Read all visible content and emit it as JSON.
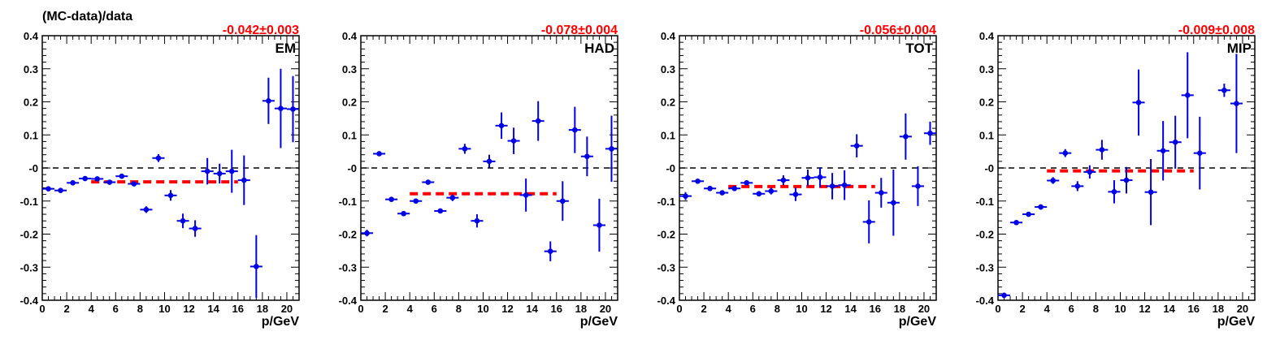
{
  "figure": {
    "ylabel": "(MC-data)/data",
    "xlabel": "p/GeV"
  },
  "colors": {
    "points": "#0000e6",
    "fit": "#ff0000",
    "zero_line": "#000000"
  },
  "chart_data": [
    {
      "type": "scatter",
      "label": "EM",
      "fit_text": "-0.042±0.003",
      "fit_value": -0.042,
      "fit_range": [
        4,
        16
      ],
      "xlim": [
        0,
        21
      ],
      "ylim": [
        -0.4,
        0.4
      ],
      "xticks": [
        0,
        2,
        4,
        6,
        8,
        10,
        12,
        14,
        16,
        18,
        20
      ],
      "yticks": [
        -0.4,
        -0.3,
        -0.2,
        -0.1,
        0,
        0.1,
        0.2,
        0.3,
        0.4
      ],
      "ytick_labels": [
        "-0.4",
        "-0.3",
        "-0.2",
        "-0.1",
        "-0",
        "0.1",
        "0.2",
        "0.3",
        "0.4"
      ],
      "x": [
        0.5,
        1.5,
        2.5,
        3.5,
        4.5,
        5.5,
        6.5,
        7.5,
        8.5,
        9.5,
        10.5,
        11.5,
        12.5,
        13.5,
        14.5,
        15.5,
        16.5,
        17.5,
        18.5,
        19.5,
        20.5
      ],
      "y": [
        -0.063,
        -0.068,
        -0.045,
        -0.032,
        -0.033,
        -0.043,
        -0.025,
        -0.048,
        -0.126,
        0.03,
        -0.083,
        -0.16,
        -0.183,
        -0.01,
        -0.017,
        -0.01,
        -0.037,
        -0.298,
        0.203,
        0.18,
        0.178
      ],
      "yerr": [
        0.005,
        0.005,
        0.005,
        0.005,
        0.005,
        0.005,
        0.006,
        0.007,
        0.01,
        0.012,
        0.016,
        0.022,
        0.025,
        0.04,
        0.03,
        0.065,
        0.075,
        0.095,
        0.07,
        0.12,
        0.1
      ]
    },
    {
      "type": "scatter",
      "label": "HAD",
      "fit_text": "-0.078±0.004",
      "fit_value": -0.078,
      "fit_range": [
        4,
        16
      ],
      "xlim": [
        0,
        21
      ],
      "ylim": [
        -0.4,
        0.4
      ],
      "xticks": [
        0,
        2,
        4,
        6,
        8,
        10,
        12,
        14,
        16,
        18,
        20
      ],
      "yticks": [
        -0.4,
        -0.3,
        -0.2,
        -0.1,
        0,
        0.1,
        0.2,
        0.3,
        0.4
      ],
      "ytick_labels": [
        "-0.4",
        "-0.3",
        "-0.2",
        "-0.1",
        "-0",
        "0.1",
        "0.2",
        "0.3",
        "0.4"
      ],
      "x": [
        0.5,
        1.5,
        2.5,
        3.5,
        4.5,
        5.5,
        6.5,
        7.5,
        8.5,
        9.5,
        10.5,
        11.5,
        12.5,
        13.5,
        14.5,
        15.5,
        16.5,
        17.5,
        18.5,
        19.5,
        20.5
      ],
      "y": [
        -0.197,
        0.043,
        -0.095,
        -0.138,
        -0.1,
        -0.043,
        -0.13,
        -0.09,
        0.058,
        -0.16,
        0.02,
        0.128,
        0.082,
        -0.082,
        0.142,
        -0.252,
        -0.1,
        0.115,
        0.035,
        -0.173,
        0.058
      ],
      "yerr": [
        0.01,
        0.005,
        0.005,
        0.005,
        0.005,
        0.005,
        0.005,
        0.01,
        0.015,
        0.02,
        0.02,
        0.04,
        0.04,
        0.05,
        0.06,
        0.03,
        0.06,
        0.07,
        0.06,
        0.08,
        0.1
      ]
    },
    {
      "type": "scatter",
      "label": "TOT",
      "fit_text": "-0.056±0.004",
      "fit_value": -0.056,
      "fit_range": [
        4,
        16
      ],
      "xlim": [
        0,
        21
      ],
      "ylim": [
        -0.4,
        0.4
      ],
      "xticks": [
        0,
        2,
        4,
        6,
        8,
        10,
        12,
        14,
        16,
        18,
        20
      ],
      "yticks": [
        -0.4,
        -0.3,
        -0.2,
        -0.1,
        0,
        0.1,
        0.2,
        0.3,
        0.4
      ],
      "ytick_labels": [
        "-0.4",
        "-0.3",
        "-0.2",
        "-0.1",
        "-0",
        "0.1",
        "0.2",
        "0.3",
        "0.4"
      ],
      "x": [
        0.5,
        1.5,
        2.5,
        3.5,
        4.5,
        5.5,
        6.5,
        7.5,
        8.5,
        9.5,
        10.5,
        11.5,
        12.5,
        13.5,
        14.5,
        15.5,
        16.5,
        17.5,
        18.5,
        19.5,
        20.5
      ],
      "y": [
        -0.085,
        -0.04,
        -0.062,
        -0.075,
        -0.062,
        -0.045,
        -0.078,
        -0.07,
        -0.037,
        -0.08,
        -0.03,
        -0.028,
        -0.055,
        -0.052,
        0.067,
        -0.163,
        -0.075,
        -0.105,
        0.095,
        -0.055,
        0.105
      ],
      "yerr": [
        0.012,
        0.006,
        0.006,
        0.006,
        0.006,
        0.006,
        0.008,
        0.01,
        0.015,
        0.02,
        0.025,
        0.03,
        0.04,
        0.045,
        0.035,
        0.065,
        0.045,
        0.1,
        0.07,
        0.06,
        0.035
      ]
    },
    {
      "type": "scatter",
      "label": "MIP",
      "fit_text": "-0.009±0.008",
      "fit_value": -0.009,
      "fit_range": [
        4,
        16
      ],
      "xlim": [
        0,
        21
      ],
      "ylim": [
        -0.4,
        0.4
      ],
      "xticks": [
        0,
        2,
        4,
        6,
        8,
        10,
        12,
        14,
        16,
        18,
        20
      ],
      "yticks": [
        -0.4,
        -0.3,
        -0.2,
        -0.1,
        0,
        0.1,
        0.2,
        0.3,
        0.4
      ],
      "ytick_labels": [
        "-0.4",
        "-0.3",
        "-0.2",
        "-0.1",
        "-0",
        "0.1",
        "0.2",
        "0.3",
        "0.4"
      ],
      "x": [
        0.5,
        1.5,
        2.5,
        3.5,
        4.5,
        5.5,
        6.5,
        7.5,
        8.5,
        9.5,
        10.5,
        11.5,
        12.5,
        13.5,
        14.5,
        15.5,
        16.5,
        18.5,
        19.5
      ],
      "y": [
        -0.385,
        -0.165,
        -0.14,
        -0.118,
        -0.038,
        0.045,
        -0.055,
        -0.012,
        0.055,
        -0.072,
        -0.037,
        0.198,
        -0.073,
        0.052,
        0.078,
        0.22,
        0.045,
        0.235,
        0.195
      ],
      "yerr": [
        0.008,
        0.006,
        0.006,
        0.008,
        0.01,
        0.012,
        0.015,
        0.02,
        0.03,
        0.035,
        0.04,
        0.1,
        0.1,
        0.09,
        0.08,
        0.13,
        0.11,
        0.02,
        0.15
      ]
    }
  ]
}
